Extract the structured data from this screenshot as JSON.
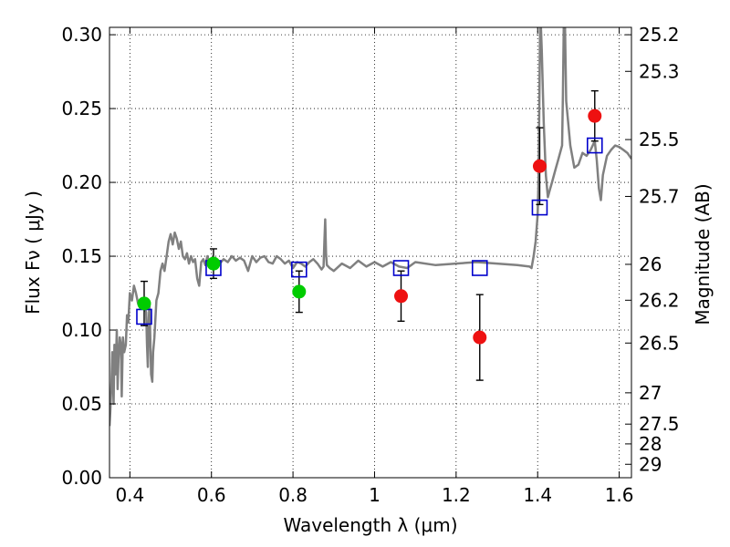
{
  "chart_data": {
    "type": "scatter",
    "title": "",
    "xlabel": "Wavelength  λ (μm)",
    "ylabel": "Flux  Fν  ( μJy )",
    "ylabel_right": "Magnitude (AB)",
    "xlim": [
      0.35,
      1.63
    ],
    "ylim": [
      0.0,
      0.305
    ],
    "grid": true,
    "grid_style": "dotted",
    "x_ticks": [
      0.4,
      0.6,
      0.8,
      1.0,
      1.2,
      1.4,
      1.6
    ],
    "x_tick_labels": [
      "0.4",
      "0.6",
      "0.8",
      "1",
      "1.2",
      "1.4",
      "1.6"
    ],
    "y_ticks": [
      0.0,
      0.05,
      0.1,
      0.15,
      0.2,
      0.25,
      0.3
    ],
    "y_tick_labels": [
      "0.00",
      "0.05",
      "0.10",
      "0.15",
      "0.20",
      "0.25",
      "0.30"
    ],
    "right_ticks": [
      {
        "flux": 0.3,
        "label": "25.2"
      },
      {
        "flux": 0.2752,
        "label": "25.3"
      },
      {
        "flux": 0.229,
        "label": "25.5"
      },
      {
        "flux": 0.1905,
        "label": "25.7"
      },
      {
        "flux": 0.1445,
        "label": "26"
      },
      {
        "flux": 0.1202,
        "label": "26.2"
      },
      {
        "flux": 0.0912,
        "label": "26.5"
      },
      {
        "flux": 0.0575,
        "label": "27"
      },
      {
        "flux": 0.0363,
        "label": "27.5"
      },
      {
        "flux": 0.0229,
        "label": "28"
      },
      {
        "flux": 0.0091,
        "label": "29"
      }
    ],
    "series": [
      {
        "kind": "model_spectrum",
        "color": "#808080",
        "x": [
          0.35,
          0.352,
          0.355,
          0.357,
          0.36,
          0.362,
          0.365,
          0.368,
          0.37,
          0.372,
          0.375,
          0.378,
          0.38,
          0.383,
          0.386,
          0.39,
          0.393,
          0.396,
          0.4,
          0.405,
          0.41,
          0.415,
          0.42,
          0.425,
          0.43,
          0.435,
          0.44,
          0.442,
          0.444,
          0.446,
          0.448,
          0.45,
          0.452,
          0.455,
          0.457,
          0.46,
          0.465,
          0.47,
          0.475,
          0.48,
          0.485,
          0.49,
          0.495,
          0.5,
          0.505,
          0.51,
          0.515,
          0.52,
          0.525,
          0.53,
          0.535,
          0.54,
          0.545,
          0.55,
          0.555,
          0.56,
          0.565,
          0.57,
          0.575,
          0.58,
          0.585,
          0.59,
          0.595,
          0.6,
          0.61,
          0.62,
          0.63,
          0.64,
          0.65,
          0.66,
          0.67,
          0.68,
          0.69,
          0.7,
          0.71,
          0.72,
          0.73,
          0.74,
          0.75,
          0.76,
          0.77,
          0.78,
          0.79,
          0.8,
          0.81,
          0.82,
          0.83,
          0.84,
          0.85,
          0.86,
          0.87,
          0.875,
          0.877,
          0.879,
          0.881,
          0.883,
          0.89,
          0.9,
          0.92,
          0.94,
          0.96,
          0.98,
          1.0,
          1.02,
          1.04,
          1.06,
          1.08,
          1.1,
          1.15,
          1.2,
          1.25,
          1.3,
          1.35,
          1.38,
          1.385,
          1.39,
          1.395,
          1.4,
          1.402,
          1.404,
          1.406,
          1.408,
          1.41,
          1.415,
          1.42,
          1.425,
          1.43,
          1.435,
          1.44,
          1.445,
          1.45,
          1.455,
          1.46,
          1.462,
          1.464,
          1.467,
          1.47,
          1.48,
          1.49,
          1.5,
          1.51,
          1.52,
          1.53,
          1.54,
          1.545,
          1.55,
          1.555,
          1.56,
          1.57,
          1.58,
          1.59,
          1.6,
          1.61,
          1.62,
          1.63
        ],
        "y": [
          0.035,
          0.045,
          0.065,
          0.085,
          0.05,
          0.09,
          0.07,
          0.1,
          0.06,
          0.08,
          0.095,
          0.09,
          0.055,
          0.095,
          0.085,
          0.09,
          0.11,
          0.105,
          0.125,
          0.12,
          0.13,
          0.125,
          0.118,
          0.115,
          0.118,
          0.116,
          0.112,
          0.09,
          0.075,
          0.105,
          0.118,
          0.095,
          0.07,
          0.065,
          0.085,
          0.095,
          0.12,
          0.125,
          0.14,
          0.145,
          0.14,
          0.15,
          0.16,
          0.165,
          0.158,
          0.166,
          0.162,
          0.155,
          0.16,
          0.15,
          0.148,
          0.152,
          0.145,
          0.15,
          0.146,
          0.148,
          0.135,
          0.13,
          0.146,
          0.148,
          0.144,
          0.15,
          0.145,
          0.144,
          0.146,
          0.145,
          0.148,
          0.146,
          0.15,
          0.147,
          0.149,
          0.147,
          0.14,
          0.15,
          0.146,
          0.149,
          0.15,
          0.146,
          0.145,
          0.15,
          0.148,
          0.145,
          0.147,
          0.142,
          0.146,
          0.145,
          0.143,
          0.146,
          0.148,
          0.145,
          0.141,
          0.143,
          0.16,
          0.175,
          0.152,
          0.144,
          0.142,
          0.14,
          0.145,
          0.142,
          0.147,
          0.143,
          0.146,
          0.143,
          0.146,
          0.143,
          0.142,
          0.146,
          0.144,
          0.145,
          0.146,
          0.145,
          0.144,
          0.143,
          0.142,
          0.15,
          0.16,
          0.178,
          0.2,
          0.25,
          0.305,
          0.305,
          0.29,
          0.24,
          0.205,
          0.19,
          0.195,
          0.2,
          0.205,
          0.21,
          0.215,
          0.22,
          0.225,
          0.26,
          0.305,
          0.305,
          0.255,
          0.225,
          0.21,
          0.212,
          0.22,
          0.218,
          0.222,
          0.228,
          0.215,
          0.196,
          0.188,
          0.205,
          0.218,
          0.222,
          0.225,
          0.224,
          0.222,
          0.22,
          0.216
        ]
      },
      {
        "kind": "model_photometry",
        "marker": "open-square",
        "color": "#0000cc",
        "x": [
          0.435,
          0.605,
          0.815,
          1.065,
          1.258,
          1.405,
          1.54
        ],
        "y": [
          0.109,
          0.142,
          0.141,
          0.142,
          0.142,
          0.183,
          0.225
        ]
      },
      {
        "kind": "observed_optical",
        "marker": "filled-circle",
        "color": "#00cc00",
        "x": [
          0.435,
          0.605,
          0.815
        ],
        "y": [
          0.118,
          0.145,
          0.126
        ],
        "yerr": [
          0.015,
          0.01,
          0.014
        ]
      },
      {
        "kind": "observed_nir",
        "marker": "filled-circle",
        "color": "#ee1111",
        "x": [
          1.065,
          1.258,
          1.405,
          1.54
        ],
        "y": [
          0.123,
          0.095,
          0.211,
          0.245
        ],
        "yerr": [
          0.017,
          0.029,
          0.026,
          0.017
        ]
      }
    ]
  }
}
